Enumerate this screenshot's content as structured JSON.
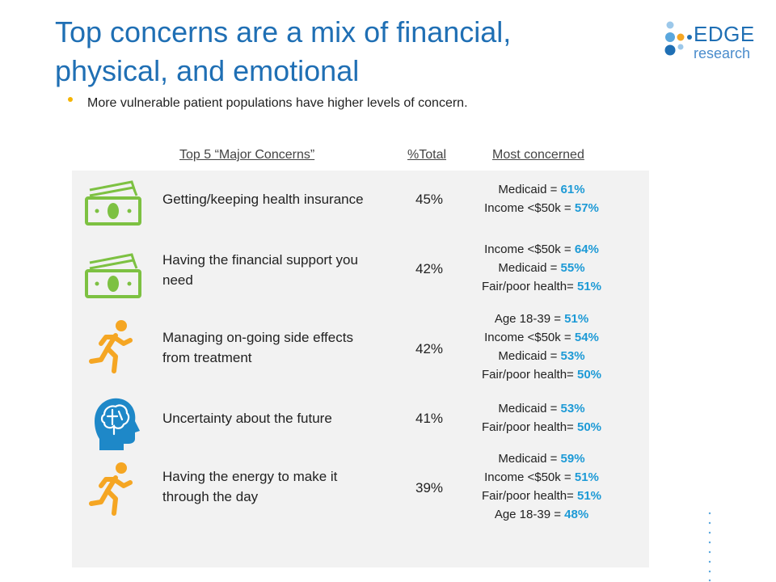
{
  "title_lines": [
    "Top concerns are a mix of financial,",
    "physical, and emotional"
  ],
  "logo": {
    "word": "EDGE",
    "sub": "research"
  },
  "bullet": "More vulnerable patient populations have higher levels of concern.",
  "headers": {
    "concern": "Top 5 “Major Concerns”",
    "total": "%Total",
    "most": "Most concerned"
  },
  "colors": {
    "title": "#1f6fb4",
    "accent_value": "#1d9ad6",
    "bullet": "#f5b400",
    "panel": "#f2f2f2",
    "money": "#7dc142",
    "runner": "#f5a623",
    "head": "#1e88c8"
  },
  "rows": [
    {
      "icon": "money-icon",
      "concern_lines": [
        "Getting/keeping health insurance"
      ],
      "total": "45%",
      "most": [
        {
          "label": "Medicaid = ",
          "value": "61%"
        },
        {
          "label": "Income <$50k = ",
          "value": "57%"
        }
      ]
    },
    {
      "icon": "money-icon",
      "concern_lines": [
        "Having the financial support you",
        "need"
      ],
      "total": "42%",
      "most": [
        {
          "label": "Income <$50k = ",
          "value": "64%"
        },
        {
          "label": "Medicaid = ",
          "value": "55%"
        },
        {
          "label": "Fair/poor health= ",
          "value": "51%"
        }
      ]
    },
    {
      "icon": "runner-icon",
      "concern_lines": [
        "Managing on-going side effects",
        "from treatment"
      ],
      "total": "42%",
      "most": [
        {
          "label": "Age 18-39 = ",
          "value": "51%"
        },
        {
          "label": "Income <$50k = ",
          "value": "54%"
        },
        {
          "label": "Medicaid = ",
          "value": "53%"
        },
        {
          "label": "Fair/poor health= ",
          "value": "50%"
        }
      ]
    },
    {
      "icon": "brain-head-icon",
      "concern_lines": [
        "Uncertainty about the future"
      ],
      "total": "41%",
      "most": [
        {
          "label": "Medicaid = ",
          "value": "53%"
        },
        {
          "label": "Fair/poor health= ",
          "value": "50%"
        }
      ]
    },
    {
      "icon": "runner-icon",
      "concern_lines": [
        "Having the energy to make it",
        "through the day"
      ],
      "total": "39%",
      "most": [
        {
          "label": "Medicaid = ",
          "value": "59%"
        },
        {
          "label": "Income <$50k = ",
          "value": "51%"
        },
        {
          "label": "Fair/poor health= ",
          "value": "51%"
        },
        {
          "label": "Age 18-39 = ",
          "value": "48%"
        }
      ]
    }
  ]
}
